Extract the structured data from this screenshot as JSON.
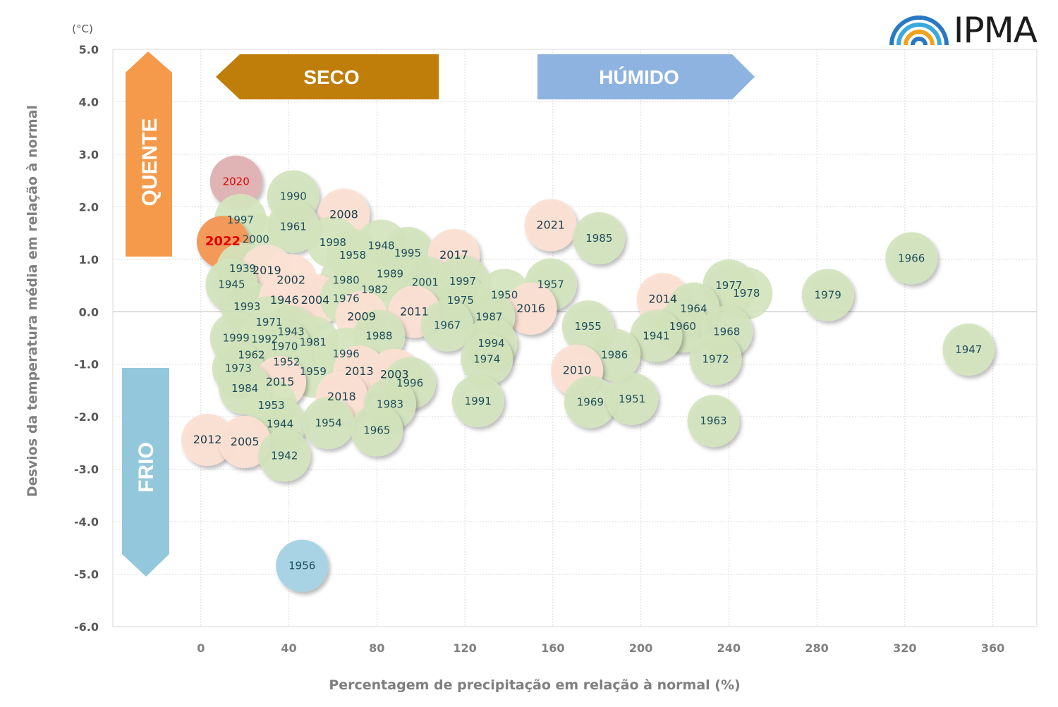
{
  "logo": {
    "text": "IPMA"
  },
  "colors": {
    "seco": "#bf7d0a",
    "humido": "#8fb3e0",
    "quente": "#f5994a",
    "frio": "#93c8dc",
    "bubble_default": "#d3e4bd",
    "bubble_recent": "#fbe0d3",
    "bubble_2020": "#e0b4b4",
    "bubble_2022": "#f39a5a",
    "bubble_1956": "#a8d3e4",
    "label_default": "#1f4e5a",
    "label_highlight": "#e00000"
  },
  "chart_data": {
    "type": "scatter",
    "title": "",
    "xlabel": "Percentagem de precipitação em relação à normal (%)",
    "ylabel": "Desvios da temperatura média em relação à normal",
    "y_unit": "(°C)",
    "xlim": [
      -40,
      380
    ],
    "ylim": [
      -6,
      5
    ],
    "x_ticks": [
      0,
      40,
      80,
      120,
      160,
      200,
      240,
      280,
      320,
      360
    ],
    "y_ticks": [
      5,
      4,
      3,
      2,
      1,
      0,
      -1,
      -2,
      -3,
      -4,
      -5,
      -6
    ],
    "y_tick_labels": [
      "5.0",
      "4.0",
      "3.0",
      "2.0",
      "1.0",
      "0.0",
      "-1.0",
      "-2.0",
      "-3.0",
      "-4.0",
      "-5.0",
      "-6.0"
    ],
    "grid": true,
    "annotations": {
      "seco": "SECO",
      "humido": "HÚMIDO",
      "quente": "QUENTE",
      "frio": "FRIO"
    },
    "points": [
      {
        "label": "1990",
        "x": 42,
        "y": 2.2
      },
      {
        "label": "2008",
        "x": 65,
        "y": 1.85,
        "style": "recent"
      },
      {
        "label": "2020",
        "x": 16,
        "y": 2.48,
        "style": "hot2020"
      },
      {
        "label": "1997",
        "x": 18,
        "y": 1.75,
        "shadow": false
      },
      {
        "label": "1961",
        "x": 42,
        "y": 1.62
      },
      {
        "label": "2000",
        "x": 25,
        "y": 1.38,
        "shadow": false
      },
      {
        "label": "1998",
        "x": 60,
        "y": 1.32,
        "shadow": false
      },
      {
        "label": "2022",
        "x": 10,
        "y": 1.33,
        "style": "hot2022"
      },
      {
        "label": "1948",
        "x": 82,
        "y": 1.26,
        "shadow": false
      },
      {
        "label": "1958",
        "x": 69,
        "y": 1.08,
        "shadow": false
      },
      {
        "label": "1995",
        "x": 94,
        "y": 1.12
      },
      {
        "label": "2017",
        "x": 115,
        "y": 1.08,
        "style": "recent"
      },
      {
        "label": "2021",
        "x": 159,
        "y": 1.65,
        "style": "recent"
      },
      {
        "label": "1985",
        "x": 181,
        "y": 1.4
      },
      {
        "label": "1966",
        "x": 323,
        "y": 1.02
      },
      {
        "label": "1939",
        "x": 19,
        "y": 0.82,
        "shadow": false
      },
      {
        "label": "2019",
        "x": 30,
        "y": 0.78,
        "style": "recent",
        "shadow": false
      },
      {
        "label": "1945",
        "x": 14,
        "y": 0.52
      },
      {
        "label": "2002",
        "x": 41,
        "y": 0.6,
        "style": "recent",
        "shadow": false
      },
      {
        "label": "1989",
        "x": 86,
        "y": 0.72
      },
      {
        "label": "1980",
        "x": 66,
        "y": 0.6,
        "shadow": false
      },
      {
        "label": "2001",
        "x": 102,
        "y": 0.56
      },
      {
        "label": "1997",
        "x": 119,
        "y": 0.58
      },
      {
        "label": "1982",
        "x": 79,
        "y": 0.42,
        "shadow": false
      },
      {
        "label": "1957",
        "x": 159,
        "y": 0.52
      },
      {
        "label": "1977",
        "x": 240,
        "y": 0.5
      },
      {
        "label": "1978",
        "x": 248,
        "y": 0.35,
        "shadow": false
      },
      {
        "label": "1979",
        "x": 285,
        "y": 0.32
      },
      {
        "label": "1993",
        "x": 21,
        "y": 0.1
      },
      {
        "label": "1946",
        "x": 38,
        "y": 0.22,
        "style": "recent",
        "shadow": false
      },
      {
        "label": "2004",
        "x": 52,
        "y": 0.22,
        "style": "recent"
      },
      {
        "label": "1976",
        "x": 66,
        "y": 0.25,
        "shadow": false
      },
      {
        "label": "1975",
        "x": 118,
        "y": 0.22
      },
      {
        "label": "1950",
        "x": 138,
        "y": 0.32,
        "shadow": false
      },
      {
        "label": "2016",
        "x": 150,
        "y": 0.06,
        "style": "recent"
      },
      {
        "label": "2014",
        "x": 210,
        "y": 0.24,
        "style": "recent"
      },
      {
        "label": "1964",
        "x": 224,
        "y": 0.06
      },
      {
        "label": "2011",
        "x": 97,
        "y": 0.0,
        "style": "recent"
      },
      {
        "label": "2009",
        "x": 73,
        "y": -0.1,
        "style": "recent",
        "shadow": false
      },
      {
        "label": "1971",
        "x": 31,
        "y": -0.2,
        "shadow": false
      },
      {
        "label": "1987",
        "x": 131,
        "y": -0.1
      },
      {
        "label": "1967",
        "x": 112,
        "y": -0.26
      },
      {
        "label": "1943",
        "x": 41,
        "y": -0.38
      },
      {
        "label": "1955",
        "x": 176,
        "y": -0.28
      },
      {
        "label": "1960",
        "x": 219,
        "y": -0.28
      },
      {
        "label": "1941",
        "x": 207,
        "y": -0.46
      },
      {
        "label": "1968",
        "x": 239,
        "y": -0.38
      },
      {
        "label": "1947",
        "x": 349,
        "y": -0.72
      },
      {
        "label": "1999",
        "x": 16,
        "y": -0.5
      },
      {
        "label": "1992",
        "x": 29,
        "y": -0.52,
        "shadow": false
      },
      {
        "label": "1988",
        "x": 81,
        "y": -0.46
      },
      {
        "label": "1981",
        "x": 51,
        "y": -0.58,
        "shadow": false
      },
      {
        "label": "1970",
        "x": 38,
        "y": -0.66
      },
      {
        "label": "1994",
        "x": 132,
        "y": -0.6
      },
      {
        "label": "1996",
        "x": 66,
        "y": -0.8,
        "shadow": false
      },
      {
        "label": "1962",
        "x": 23,
        "y": -0.82,
        "shadow": false
      },
      {
        "label": "1986",
        "x": 188,
        "y": -0.82
      },
      {
        "label": "1972",
        "x": 234,
        "y": -0.9
      },
      {
        "label": "1952",
        "x": 39,
        "y": -0.96
      },
      {
        "label": "1974",
        "x": 130,
        "y": -0.9
      },
      {
        "label": "1973",
        "x": 17,
        "y": -1.08
      },
      {
        "label": "1959",
        "x": 51,
        "y": -1.14,
        "shadow": false
      },
      {
        "label": "2013",
        "x": 72,
        "y": -1.14,
        "style": "recent"
      },
      {
        "label": "2003",
        "x": 88,
        "y": -1.2,
        "style": "recent"
      },
      {
        "label": "1996",
        "x": 95,
        "y": -1.36
      },
      {
        "label": "2010",
        "x": 171,
        "y": -1.12,
        "style": "recent"
      },
      {
        "label": "2015",
        "x": 36,
        "y": -1.34,
        "style": "recent"
      },
      {
        "label": "1984",
        "x": 20,
        "y": -1.46
      },
      {
        "label": "2018",
        "x": 64,
        "y": -1.62,
        "style": "recent"
      },
      {
        "label": "1991",
        "x": 126,
        "y": -1.7
      },
      {
        "label": "1969",
        "x": 177,
        "y": -1.72
      },
      {
        "label": "1951",
        "x": 196,
        "y": -1.66
      },
      {
        "label": "1953",
        "x": 32,
        "y": -1.78,
        "shadow": false
      },
      {
        "label": "1983",
        "x": 86,
        "y": -1.76
      },
      {
        "label": "1963",
        "x": 233,
        "y": -2.08
      },
      {
        "label": "1944",
        "x": 36,
        "y": -2.14
      },
      {
        "label": "1954",
        "x": 58,
        "y": -2.12
      },
      {
        "label": "1965",
        "x": 80,
        "y": -2.26
      },
      {
        "label": "2012",
        "x": 3,
        "y": -2.44,
        "style": "recent"
      },
      {
        "label": "2005",
        "x": 20,
        "y": -2.48,
        "style": "recent"
      },
      {
        "label": "1942",
        "x": 38,
        "y": -2.74
      },
      {
        "label": "1956",
        "x": 46,
        "y": -4.84,
        "style": "cold1956"
      }
    ]
  }
}
